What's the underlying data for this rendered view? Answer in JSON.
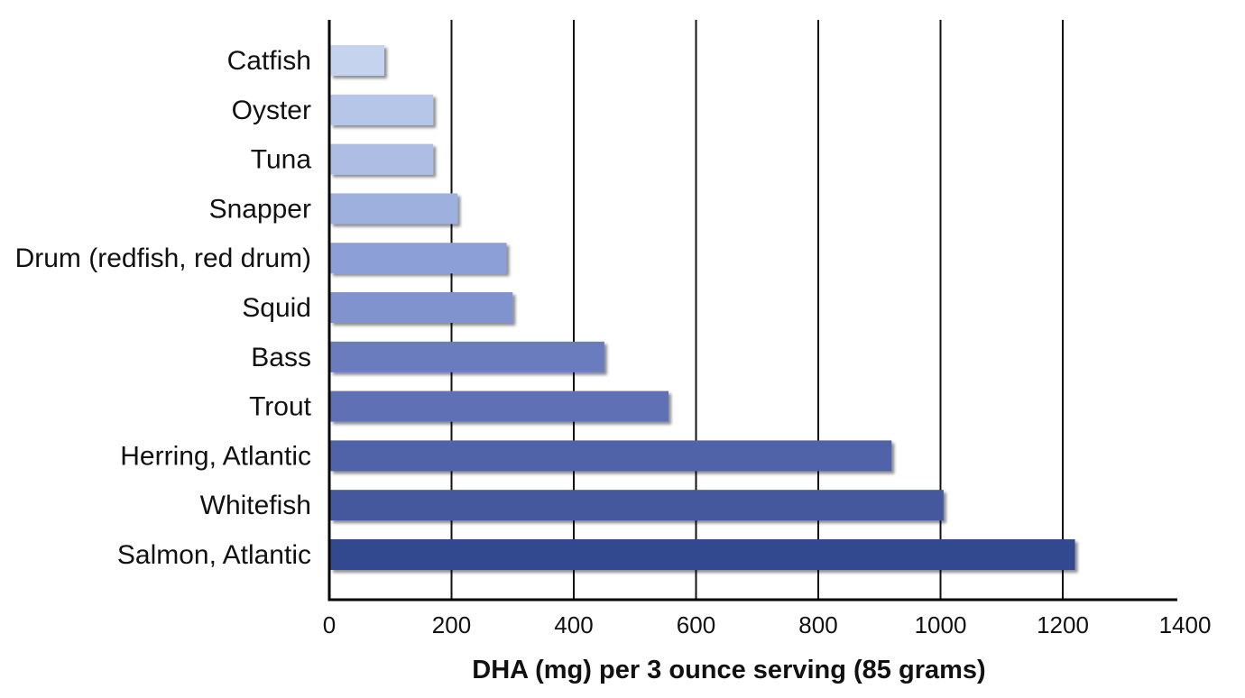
{
  "chart_data": {
    "type": "bar",
    "orientation": "horizontal",
    "title": "",
    "xlabel": "DHA (mg) per 3 ounce serving (85 grams)",
    "ylabel": "",
    "xlim": [
      0,
      1400
    ],
    "xticks": [
      "0",
      "200",
      "400",
      "600",
      "800",
      "1000",
      "1200",
      "1400"
    ],
    "grid": "vertical",
    "legend": "none",
    "categories": [
      "Catfish",
      "Oyster",
      "Tuna",
      "Snapper",
      "Drum (redfish, red drum)",
      "Squid",
      "Bass",
      "Trout",
      "Herring, Atlantic",
      "Whitefish",
      "Salmon, Atlantic"
    ],
    "values": [
      90,
      170,
      170,
      210,
      290,
      300,
      450,
      555,
      920,
      1005,
      1220
    ],
    "bar_colors": [
      "#c6d3ee",
      "#b6c6e9",
      "#aebde4",
      "#9eb0de",
      "#8d9fd7",
      "#8193ce",
      "#6a7cbd",
      "#5e70b4",
      "#5164a8",
      "#44589e",
      "#33498f"
    ]
  }
}
